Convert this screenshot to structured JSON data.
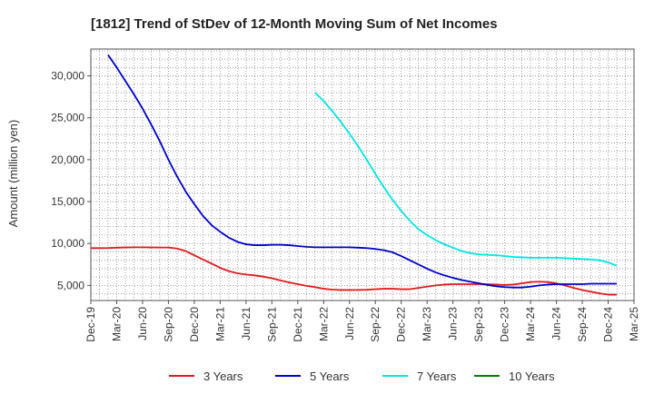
{
  "chart_data": {
    "type": "line",
    "title": "[1812]  Trend of StDev of 12-Month Moving Sum of Net Incomes",
    "xlabel": "",
    "ylabel": "Amount (million yen)",
    "ylim": [
      3200,
      33200
    ],
    "y_ticks": [
      5000,
      10000,
      15000,
      20000,
      25000,
      30000
    ],
    "y_tick_labels": [
      "5,000",
      "10,000",
      "15,000",
      "20,000",
      "25,000",
      "30,000"
    ],
    "x_ticks": [
      "Dec-19",
      "Mar-20",
      "Jun-20",
      "Sep-20",
      "Dec-20",
      "Mar-21",
      "Jun-21",
      "Sep-21",
      "Dec-21",
      "Mar-22",
      "Jun-22",
      "Sep-22",
      "Dec-22",
      "Mar-23",
      "Jun-23",
      "Sep-23",
      "Dec-23",
      "Mar-24",
      "Jun-24",
      "Sep-24",
      "Dec-24",
      "Mar-25"
    ],
    "grid": true,
    "legend": "bottom",
    "series": [
      {
        "name": "3 Years",
        "color": "#e31a1c",
        "points": [
          [
            "Dec-19",
            9450
          ],
          [
            "Jan-20",
            9450
          ],
          [
            "Feb-20",
            9460
          ],
          [
            "Mar-20",
            9500
          ],
          [
            "Apr-20",
            9530
          ],
          [
            "May-20",
            9550
          ],
          [
            "Jun-20",
            9550
          ],
          [
            "Jul-20",
            9530
          ],
          [
            "Aug-20",
            9520
          ],
          [
            "Sep-20",
            9520
          ],
          [
            "Oct-20",
            9400
          ],
          [
            "Nov-20",
            9100
          ],
          [
            "Dec-20",
            8600
          ],
          [
            "Jan-21",
            8100
          ],
          [
            "Feb-21",
            7600
          ],
          [
            "Mar-21",
            7100
          ],
          [
            "Apr-21",
            6700
          ],
          [
            "May-21",
            6450
          ],
          [
            "Jun-21",
            6300
          ],
          [
            "Jul-21",
            6200
          ],
          [
            "Aug-21",
            6050
          ],
          [
            "Sep-21",
            5850
          ],
          [
            "Oct-21",
            5600
          ],
          [
            "Nov-21",
            5350
          ],
          [
            "Dec-21",
            5150
          ],
          [
            "Jan-22",
            4950
          ],
          [
            "Feb-22",
            4800
          ],
          [
            "Mar-22",
            4600
          ],
          [
            "Apr-22",
            4500
          ],
          [
            "May-22",
            4450
          ],
          [
            "Jun-22",
            4450
          ],
          [
            "Jul-22",
            4460
          ],
          [
            "Aug-22",
            4480
          ],
          [
            "Sep-22",
            4550
          ],
          [
            "Oct-22",
            4600
          ],
          [
            "Nov-22",
            4600
          ],
          [
            "Dec-22",
            4550
          ],
          [
            "Jan-23",
            4550
          ],
          [
            "Feb-23",
            4700
          ],
          [
            "Mar-23",
            4850
          ],
          [
            "Apr-23",
            5000
          ],
          [
            "May-23",
            5100
          ],
          [
            "Jun-23",
            5150
          ],
          [
            "Jul-23",
            5150
          ],
          [
            "Aug-23",
            5150
          ],
          [
            "Sep-23",
            5150
          ],
          [
            "Oct-23",
            5150
          ],
          [
            "Nov-23",
            5100
          ],
          [
            "Dec-23",
            5050
          ],
          [
            "Jan-24",
            5100
          ],
          [
            "Feb-24",
            5250
          ],
          [
            "Mar-24",
            5400
          ],
          [
            "Apr-24",
            5450
          ],
          [
            "May-24",
            5400
          ],
          [
            "Jun-24",
            5250
          ],
          [
            "Jul-24",
            5000
          ],
          [
            "Aug-24",
            4700
          ],
          [
            "Sep-24",
            4450
          ],
          [
            "Oct-24",
            4250
          ],
          [
            "Nov-24",
            4050
          ],
          [
            "Dec-24",
            3900
          ],
          [
            "Jan-25",
            3900
          ]
        ]
      },
      {
        "name": "5 Years",
        "color": "#0000cc",
        "points": [
          [
            "Feb-20",
            32500
          ],
          [
            "Mar-20",
            31000
          ],
          [
            "Apr-20",
            29400
          ],
          [
            "May-20",
            27800
          ],
          [
            "Jun-20",
            26100
          ],
          [
            "Jul-20",
            24200
          ],
          [
            "Aug-20",
            22200
          ],
          [
            "Sep-20",
            20000
          ],
          [
            "Oct-20",
            18000
          ],
          [
            "Nov-20",
            16200
          ],
          [
            "Dec-20",
            14700
          ],
          [
            "Jan-21",
            13300
          ],
          [
            "Feb-21",
            12200
          ],
          [
            "Mar-21",
            11400
          ],
          [
            "Apr-21",
            10700
          ],
          [
            "May-21",
            10200
          ],
          [
            "Jun-21",
            9900
          ],
          [
            "Jul-21",
            9800
          ],
          [
            "Aug-21",
            9800
          ],
          [
            "Sep-21",
            9850
          ],
          [
            "Oct-21",
            9850
          ],
          [
            "Nov-21",
            9800
          ],
          [
            "Dec-21",
            9700
          ],
          [
            "Jan-22",
            9600
          ],
          [
            "Feb-22",
            9550
          ],
          [
            "Mar-22",
            9550
          ],
          [
            "Apr-22",
            9550
          ],
          [
            "May-22",
            9550
          ],
          [
            "Jun-22",
            9550
          ],
          [
            "Jul-22",
            9500
          ],
          [
            "Aug-22",
            9450
          ],
          [
            "Sep-22",
            9350
          ],
          [
            "Oct-22",
            9200
          ],
          [
            "Nov-22",
            8950
          ],
          [
            "Dec-22",
            8500
          ],
          [
            "Jan-23",
            8000
          ],
          [
            "Feb-23",
            7500
          ],
          [
            "Mar-23",
            7000
          ],
          [
            "Apr-23",
            6550
          ],
          [
            "May-23",
            6200
          ],
          [
            "Jun-23",
            5900
          ],
          [
            "Jul-23",
            5650
          ],
          [
            "Aug-23",
            5450
          ],
          [
            "Sep-23",
            5250
          ],
          [
            "Oct-23",
            5050
          ],
          [
            "Nov-23",
            4900
          ],
          [
            "Dec-23",
            4800
          ],
          [
            "Jan-24",
            4750
          ],
          [
            "Feb-24",
            4750
          ],
          [
            "Mar-24",
            4850
          ],
          [
            "Apr-24",
            5000
          ],
          [
            "May-24",
            5100
          ],
          [
            "Jun-24",
            5150
          ],
          [
            "Jul-24",
            5150
          ],
          [
            "Aug-24",
            5150
          ],
          [
            "Sep-24",
            5150
          ],
          [
            "Oct-24",
            5200
          ],
          [
            "Nov-24",
            5200
          ],
          [
            "Dec-24",
            5200
          ],
          [
            "Jan-25",
            5200
          ]
        ]
      },
      {
        "name": "7 Years",
        "color": "#00e5e5",
        "points": [
          [
            "Feb-22",
            28000
          ],
          [
            "Mar-22",
            27000
          ],
          [
            "Apr-22",
            25800
          ],
          [
            "May-22",
            24500
          ],
          [
            "Jun-22",
            23100
          ],
          [
            "Jul-22",
            21600
          ],
          [
            "Aug-22",
            20000
          ],
          [
            "Sep-22",
            18300
          ],
          [
            "Oct-22",
            16700
          ],
          [
            "Nov-22",
            15200
          ],
          [
            "Dec-22",
            13900
          ],
          [
            "Jan-23",
            12700
          ],
          [
            "Feb-23",
            11700
          ],
          [
            "Mar-23",
            11000
          ],
          [
            "Apr-23",
            10400
          ],
          [
            "May-23",
            9900
          ],
          [
            "Jun-23",
            9500
          ],
          [
            "Jul-23",
            9100
          ],
          [
            "Aug-23",
            8850
          ],
          [
            "Sep-23",
            8700
          ],
          [
            "Oct-23",
            8650
          ],
          [
            "Nov-23",
            8600
          ],
          [
            "Dec-23",
            8500
          ],
          [
            "Jan-24",
            8400
          ],
          [
            "Feb-24",
            8350
          ],
          [
            "Mar-24",
            8300
          ],
          [
            "Apr-24",
            8300
          ],
          [
            "May-24",
            8300
          ],
          [
            "Jun-24",
            8300
          ],
          [
            "Jul-24",
            8250
          ],
          [
            "Aug-24",
            8200
          ],
          [
            "Sep-24",
            8150
          ],
          [
            "Oct-24",
            8100
          ],
          [
            "Nov-24",
            8000
          ],
          [
            "Dec-24",
            7750
          ],
          [
            "Jan-25",
            7350
          ]
        ]
      },
      {
        "name": "10 Years",
        "color": "#008000",
        "points": []
      }
    ]
  }
}
